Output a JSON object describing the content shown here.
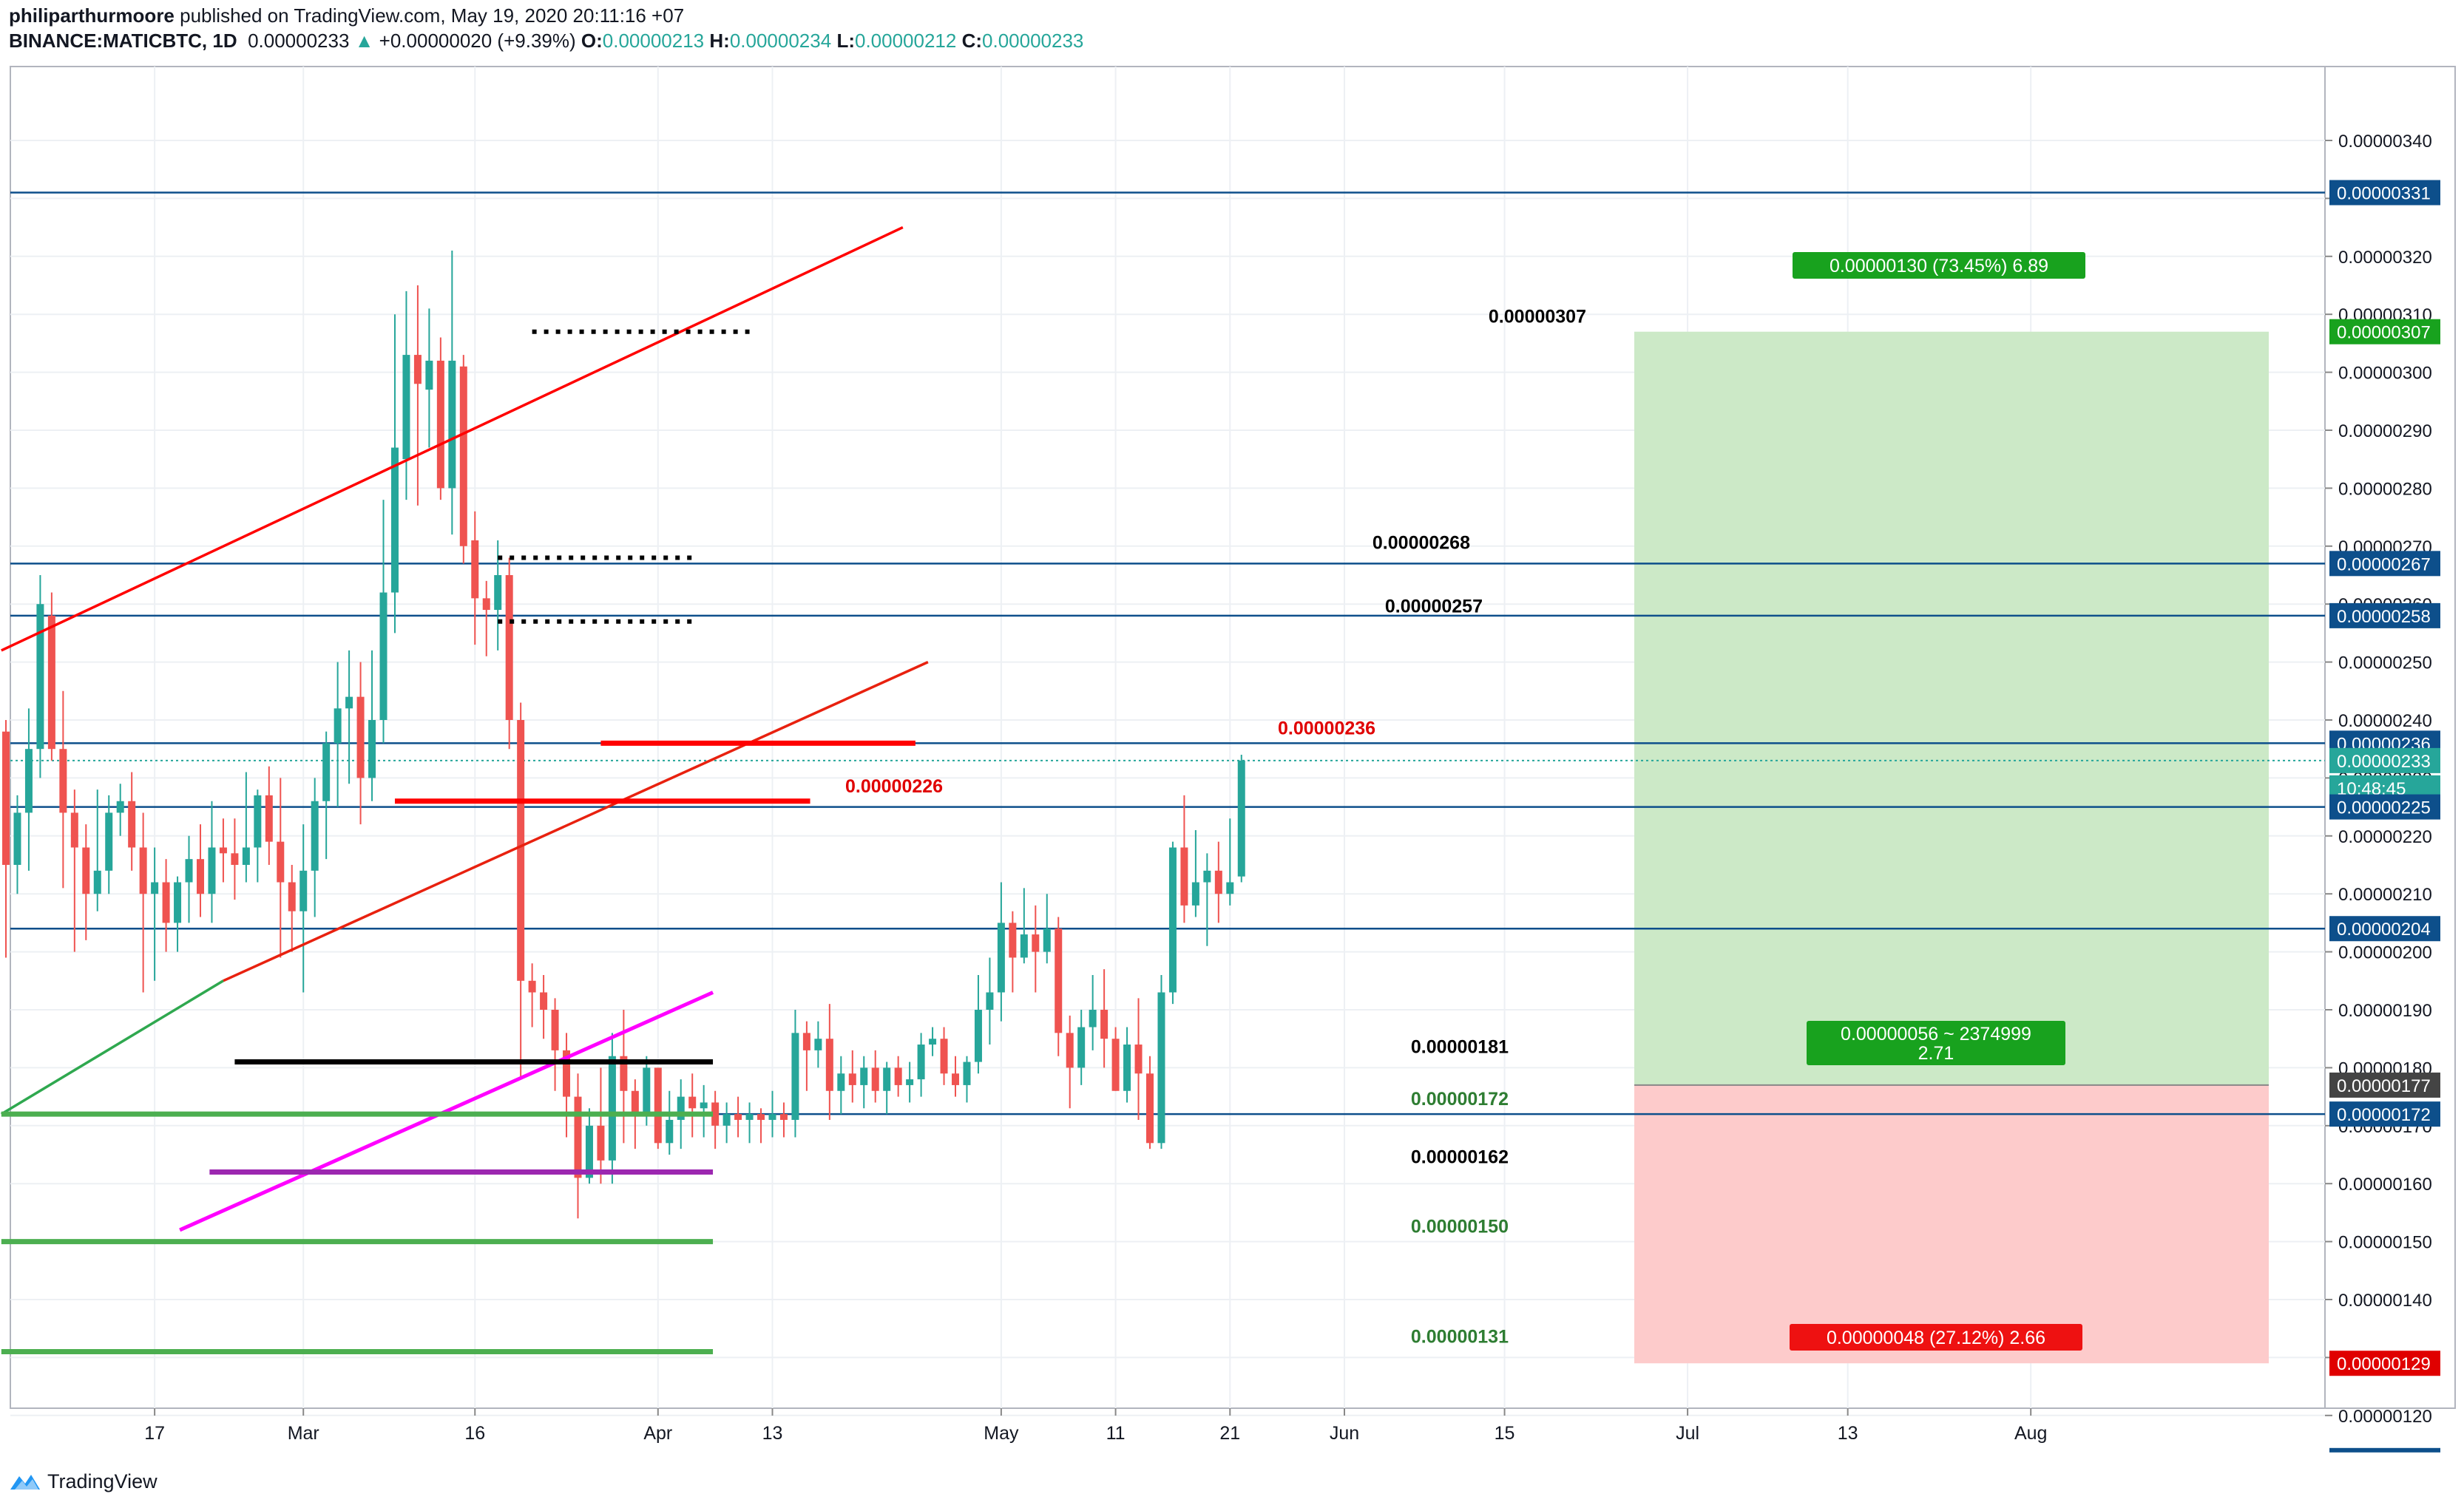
{
  "header": {
    "author": "philiparthurmoore",
    "published": "published on TradingView.com, May 19, 2020 20:11:16 +07",
    "symbol": "BINANCE:MATICBTC, 1D",
    "last": "0.00000233",
    "change": "+0.00000020 (+9.39%)",
    "o_label": "O:",
    "o": "0.00000213",
    "h_label": "H:",
    "h": "0.00000234",
    "l_label": "L:",
    "l": "0.00000212",
    "c_label": "C:",
    "c": "0.00000233"
  },
  "footer": {
    "brand": "TradingView"
  },
  "colors": {
    "up": "#26a69a",
    "down": "#ef5350",
    "grid": "#edf0f4",
    "axis_text": "#131722",
    "badge_blue": "#0d4f8b",
    "red_line": "#ff0000",
    "green_line": "#4caf50",
    "magenta": "#ff00ff",
    "purple": "#9c27b0",
    "black": "#000000",
    "profit_zone": "#cce9c7",
    "loss_zone": "#fdcbcb"
  },
  "chart_data": {
    "type": "candlestick",
    "xlabels": [
      "17",
      "Mar",
      "16",
      "Apr",
      "13",
      "May",
      "11",
      "21",
      "Jun",
      "15",
      "Jul",
      "13",
      "Aug"
    ],
    "ylim": [
      1.15e-06,
      3.45e-06
    ],
    "yticks": [
      "0.00000340",
      "0.00000330",
      "0.00000320",
      "0.00000310",
      "0.00000300",
      "0.00000290",
      "0.00000280",
      "0.00000270",
      "0.00000260",
      "0.00000250",
      "0.00000240",
      "0.00000230",
      "0.00000220",
      "0.00000210",
      "0.00000200",
      "0.00000190",
      "0.00000180",
      "0.00000170",
      "0.00000160",
      "0.00000150",
      "0.00000140",
      "0.00000130",
      "0.00000120"
    ],
    "candles": [
      [
        238,
        215,
        240,
        199
      ],
      [
        215,
        224,
        227,
        210
      ],
      [
        224,
        235,
        242,
        214
      ],
      [
        235,
        260,
        265,
        230
      ],
      [
        258,
        235,
        262,
        233
      ],
      [
        235,
        224,
        245,
        211
      ],
      [
        224,
        218,
        228,
        200
      ],
      [
        218,
        210,
        222,
        202
      ],
      [
        210,
        214,
        228,
        207
      ],
      [
        214,
        224,
        227,
        210
      ],
      [
        224,
        226,
        229,
        220
      ],
      [
        226,
        218,
        231,
        214
      ],
      [
        218,
        210,
        224,
        193
      ],
      [
        210,
        212,
        218,
        195
      ],
      [
        212,
        205,
        216,
        200
      ],
      [
        205,
        212,
        213,
        200
      ],
      [
        212,
        216,
        220,
        205
      ],
      [
        216,
        210,
        222,
        206
      ],
      [
        210,
        218,
        226,
        205
      ],
      [
        218,
        217,
        223,
        212
      ],
      [
        217,
        215,
        223,
        209
      ],
      [
        215,
        218,
        231,
        212
      ],
      [
        218,
        227,
        228,
        212
      ],
      [
        227,
        219,
        232,
        215
      ],
      [
        219,
        212,
        230,
        199
      ],
      [
        212,
        207,
        215,
        200
      ],
      [
        207,
        214,
        222,
        193
      ],
      [
        214,
        226,
        230,
        206
      ],
      [
        226,
        236,
        238,
        216
      ],
      [
        236,
        242,
        250,
        225
      ],
      [
        242,
        244,
        252,
        229
      ],
      [
        244,
        230,
        250,
        222
      ],
      [
        230,
        240,
        252,
        226
      ],
      [
        240,
        262,
        278,
        236
      ],
      [
        262,
        287,
        310,
        255
      ],
      [
        285,
        303,
        314,
        278
      ],
      [
        303,
        298,
        315,
        277
      ],
      [
        297,
        302,
        311,
        287
      ],
      [
        302,
        280,
        306,
        278
      ],
      [
        280,
        302,
        321,
        272
      ],
      [
        301,
        270,
        303,
        267
      ],
      [
        271,
        261,
        276,
        253
      ],
      [
        261,
        259,
        264,
        251
      ],
      [
        259,
        265,
        271,
        252
      ],
      [
        265,
        240,
        268,
        235
      ],
      [
        240,
        195,
        243,
        178
      ],
      [
        195,
        193,
        198,
        187
      ],
      [
        193,
        190,
        196,
        185
      ],
      [
        190,
        183,
        192,
        176
      ],
      [
        183,
        175,
        186,
        168
      ],
      [
        175,
        161,
        179,
        154
      ],
      [
        161,
        170,
        173,
        160
      ],
      [
        170,
        164,
        180,
        160
      ],
      [
        164,
        182,
        186,
        160
      ],
      [
        182,
        176,
        190,
        167
      ],
      [
        176,
        172,
        178,
        166
      ],
      [
        172,
        180,
        182,
        170
      ],
      [
        180,
        167,
        180,
        166
      ],
      [
        167,
        171,
        176,
        165
      ],
      [
        171,
        175,
        178,
        166
      ],
      [
        175,
        173,
        179,
        168
      ],
      [
        173,
        174,
        177,
        168
      ],
      [
        174,
        170,
        176,
        166
      ],
      [
        170,
        172,
        174,
        167
      ],
      [
        172,
        171,
        175,
        168
      ],
      [
        171,
        172,
        174,
        167
      ],
      [
        172,
        171,
        173,
        167
      ],
      [
        171,
        172,
        176,
        168
      ],
      [
        172,
        171,
        174,
        168
      ],
      [
        171,
        186,
        190,
        168
      ],
      [
        186,
        183,
        188,
        176
      ],
      [
        183,
        185,
        188,
        180
      ],
      [
        185,
        176,
        191,
        171
      ],
      [
        176,
        179,
        182,
        172
      ],
      [
        179,
        177,
        183,
        174
      ],
      [
        177,
        180,
        182,
        173
      ],
      [
        180,
        176,
        183,
        174
      ],
      [
        176,
        180,
        181,
        172
      ],
      [
        180,
        177,
        182,
        175
      ],
      [
        177,
        178,
        181,
        174
      ],
      [
        178,
        184,
        186,
        175
      ],
      [
        184,
        185,
        187,
        182
      ],
      [
        185,
        179,
        187,
        177
      ],
      [
        179,
        177,
        182,
        175
      ],
      [
        177,
        181,
        182,
        174
      ],
      [
        181,
        190,
        196,
        179
      ],
      [
        190,
        193,
        199,
        184
      ],
      [
        193,
        205,
        212,
        188
      ],
      [
        205,
        199,
        207,
        193
      ],
      [
        199,
        203,
        211,
        198
      ],
      [
        203,
        200,
        208,
        193
      ],
      [
        200,
        204,
        210,
        198
      ],
      [
        204,
        186,
        206,
        182
      ],
      [
        186,
        180,
        189,
        173
      ],
      [
        180,
        187,
        190,
        177
      ],
      [
        187,
        190,
        196,
        183
      ],
      [
        190,
        185,
        197,
        180
      ],
      [
        185,
        176,
        187,
        176
      ],
      [
        176,
        184,
        187,
        174
      ],
      [
        184,
        179,
        192,
        171
      ],
      [
        179,
        167,
        182,
        166
      ],
      [
        167,
        193,
        196,
        166
      ],
      [
        193,
        218,
        219,
        191
      ],
      [
        218,
        208,
        227,
        205
      ],
      [
        208,
        212,
        221,
        206
      ],
      [
        212,
        214,
        217,
        201
      ],
      [
        214,
        210,
        219,
        205
      ],
      [
        210,
        212,
        223,
        208
      ],
      [
        213,
        233,
        234,
        212
      ]
    ],
    "horizontal_levels": [
      {
        "price": "0.00000331",
        "color": "#0d4f8b"
      },
      {
        "price": "0.00000267",
        "color": "#0d4f8b"
      },
      {
        "price": "0.00000258",
        "color": "#0d4f8b"
      },
      {
        "price": "0.00000236",
        "color": "#0d4f8b"
      },
      {
        "price": "0.00000225",
        "color": "#0d4f8b"
      },
      {
        "price": "0.00000204",
        "color": "#0d4f8b"
      },
      {
        "price": "0.00000172",
        "color": "#0d4f8b"
      }
    ],
    "levels": [
      {
        "label": "0.00000307",
        "style": "dotted",
        "color": "#000000"
      },
      {
        "label": "0.00000268",
        "style": "dotted",
        "color": "#000000"
      },
      {
        "label": "0.00000257",
        "style": "dotted",
        "color": "#000000"
      },
      {
        "label": "0.00000236",
        "style": "solid",
        "color": "#ff0000"
      },
      {
        "label": "0.00000226",
        "style": "solid",
        "color": "#ff0000"
      },
      {
        "label": "0.00000181",
        "style": "solid",
        "color": "#000000"
      },
      {
        "label": "0.00000172",
        "style": "solid",
        "color": "#4caf50"
      },
      {
        "label": "0.00000162",
        "style": "solid",
        "color": "#9c27b0"
      },
      {
        "label": "0.00000150",
        "style": "solid",
        "color": "#4caf50"
      },
      {
        "label": "0.00000131",
        "style": "solid",
        "color": "#4caf50"
      }
    ],
    "trendlines": [
      {
        "name": "upper-channel",
        "color": "#ff0000"
      },
      {
        "name": "lower-channel",
        "color": "#ff0000"
      },
      {
        "name": "lower-channel-extension",
        "color": "#4caf50"
      },
      {
        "name": "rising-support",
        "color": "#ff00ff"
      }
    ],
    "position": {
      "entry": "0.00000177",
      "target": "0.00000307",
      "stop": "0.00000129",
      "target_label": "0.00000130 (73.45%) 6.89",
      "center_label_1": "0.00000056 ~ 2374999",
      "center_label_2": "2.71",
      "stop_label": "0.00000048 (27.12%) 2.66"
    },
    "price_badges": [
      {
        "text": "0.00000331",
        "color": "#0d4f8b"
      },
      {
        "text": "0.00000307",
        "color": "#18a21e"
      },
      {
        "text": "0.00000267",
        "color": "#0d4f8b"
      },
      {
        "text": "0.00000258",
        "color": "#0d4f8b"
      },
      {
        "text": "0.00000236",
        "color": "#0d4f8b"
      },
      {
        "text": "0.00000233",
        "color": "#26a69a"
      },
      {
        "text": "10:48:45",
        "color": "#26a69a"
      },
      {
        "text": "0.00000225",
        "color": "#0d4f8b"
      },
      {
        "text": "0.00000204",
        "color": "#0d4f8b"
      },
      {
        "text": "0.00000177",
        "color": "#444444"
      },
      {
        "text": "0.00000172",
        "color": "#0d4f8b"
      },
      {
        "text": "0.00000129",
        "color": "#e00000"
      }
    ]
  }
}
